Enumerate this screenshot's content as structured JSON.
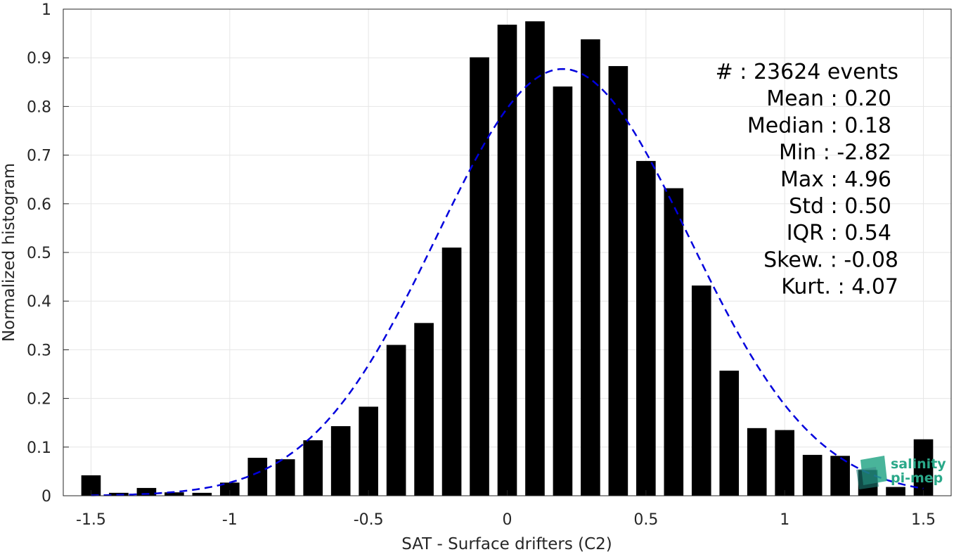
{
  "chart_data": {
    "type": "bar",
    "xlabel": "SAT - Surface drifters (C2)",
    "ylabel": "Normalized histogram",
    "xlim": [
      -1.6,
      1.6
    ],
    "ylim": [
      0,
      1
    ],
    "xticks": [
      -1.5,
      -1,
      -0.5,
      0,
      0.5,
      1,
      1.5
    ],
    "xtick_labels": [
      "-1.5",
      "-1",
      "-0.5",
      "0",
      "0.5",
      "1",
      "1.5"
    ],
    "yticks": [
      0,
      0.1,
      0.2,
      0.3,
      0.4,
      0.5,
      0.6,
      0.7,
      0.8,
      0.9,
      1
    ],
    "ytick_labels": [
      "0",
      "0.1",
      "0.2",
      "0.3",
      "0.4",
      "0.5",
      "0.6",
      "0.7",
      "0.8",
      "0.9",
      "1"
    ],
    "grid": true,
    "bar_width": 0.07,
    "bar_color": "#000000",
    "fit_color": "#0000dd",
    "bars": {
      "x": [
        -1.5,
        -1.4,
        -1.3,
        -1.2,
        -1.1,
        -1.0,
        -0.9,
        -0.8,
        -0.7,
        -0.6,
        -0.5,
        -0.4,
        -0.3,
        -0.2,
        -0.1,
        0.0,
        0.1,
        0.2,
        0.3,
        0.4,
        0.5,
        0.6,
        0.7,
        0.8,
        0.9,
        1.0,
        1.1,
        1.2,
        1.3,
        1.4,
        1.5
      ],
      "values": [
        0.042,
        0.006,
        0.016,
        0.007,
        0.006,
        0.027,
        0.078,
        0.075,
        0.114,
        0.143,
        0.183,
        0.31,
        0.355,
        0.51,
        0.901,
        0.968,
        0.975,
        0.841,
        0.938,
        0.883,
        0.688,
        0.632,
        0.432,
        0.257,
        0.139,
        0.135,
        0.084,
        0.082,
        0.053,
        0.018,
        0.116
      ]
    },
    "fit_curve": {
      "style": "dashed",
      "mean": 0.2,
      "std": 0.455,
      "peak": 0.877
    },
    "stats": [
      "#  : 23624 events",
      "Mean : 0.20",
      "Median : 0.18",
      "Min : -2.82",
      "Max : 4.96",
      "Std : 0.50",
      "IQR : 0.54",
      "Skew. : -0.08",
      "Kurt. : 4.07"
    ]
  },
  "logo": {
    "line1": "salinity",
    "line2": "pi-mep",
    "color": "#2aa889"
  }
}
